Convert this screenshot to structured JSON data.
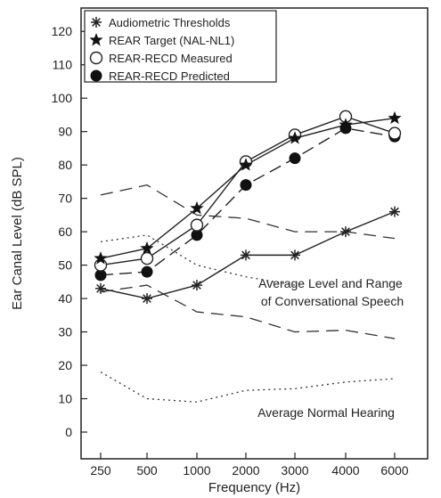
{
  "chart_data": {
    "type": "line",
    "title": "",
    "xlabel": "Frequency (Hz)",
    "ylabel": "Ear Canal Level (dB SPL)",
    "categories": [
      "250",
      "500",
      "1000",
      "2000",
      "3000",
      "4000",
      "6000"
    ],
    "ylim": [
      -8,
      127
    ],
    "yticks": [
      0,
      10,
      20,
      30,
      40,
      50,
      60,
      70,
      80,
      90,
      100,
      110,
      120
    ],
    "grid": false,
    "legend_position": "top-left",
    "series": [
      {
        "name": "Audiometric Thresholds",
        "marker": "asterisk",
        "line": "solid",
        "values": [
          43,
          40,
          44,
          53,
          53,
          60,
          66
        ]
      },
      {
        "name": "REAR Target (NAL-NL1)",
        "marker": "star",
        "line": "solid",
        "values": [
          52,
          55,
          67,
          80,
          88,
          92,
          94
        ]
      },
      {
        "name": "REAR-RECD Measured",
        "marker": "open-circle",
        "line": "solid",
        "values": [
          50,
          52,
          62,
          81,
          89,
          94.5,
          89.5
        ]
      },
      {
        "name": "REAR-RECD Predicted",
        "marker": "filled-circle",
        "line": "dashed",
        "values": [
          47,
          48,
          59,
          74,
          82,
          91,
          88.5
        ]
      }
    ],
    "bands": [
      {
        "style": "dashed",
        "values": [
          71,
          74,
          65,
          64,
          60,
          60,
          58
        ]
      },
      {
        "style": "dotted",
        "values": [
          57,
          59,
          50,
          46.5,
          44,
          null,
          null
        ]
      },
      {
        "style": "dashed",
        "values": [
          42,
          44,
          36,
          34.5,
          30,
          30.5,
          28
        ]
      },
      {
        "style": "dotted",
        "values": [
          18,
          10,
          9,
          12.5,
          13,
          15,
          16
        ]
      }
    ],
    "annotations": {
      "speech_line1": "Average Level and Range",
      "speech_line2": "of Conversational Speech",
      "normal_hearing": "Average Normal Hearing"
    }
  }
}
